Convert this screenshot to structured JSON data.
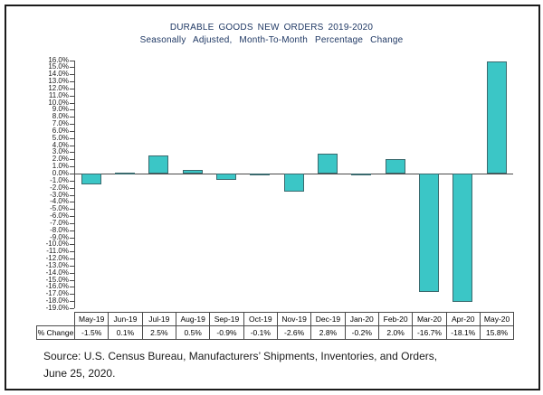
{
  "source": {
    "line1": "Source: U.S. Census Bureau, Manufacturers’ Shipments, Inventories, and Orders,",
    "line2": "June 25, 2020."
  },
  "table": {
    "row_label": "% Change"
  },
  "colors": {
    "bar_fill": "#3BC6C6",
    "bar_border": "#3A6A6E",
    "axis_line": "#4a4a4a",
    "title_text": "#1F3864",
    "frame_border": "#1b1b1b"
  },
  "chart_data": {
    "type": "bar",
    "title": "DURABLE GOODS NEW ORDERS 2019-2020",
    "subtitle": "Seasonally Adjusted, Month-To-Month Percentage Change",
    "categories": [
      "May-19",
      "Jun-19",
      "Jul-19",
      "Aug-19",
      "Sep-19",
      "Oct-19",
      "Nov-19",
      "Dec-19",
      "Jan-20",
      "Feb-20",
      "Mar-20",
      "Apr-20",
      "May-20"
    ],
    "values": [
      -1.5,
      0.1,
      2.5,
      0.5,
      -0.9,
      -0.1,
      -2.6,
      2.8,
      -0.2,
      2.0,
      -16.7,
      -18.1,
      15.8
    ],
    "value_labels": [
      "-1.5%",
      "0.1%",
      "2.5%",
      "0.5%",
      "-0.9%",
      "-0.1%",
      "-2.6%",
      "2.8%",
      "-0.2%",
      "2.0%",
      "-16.7%",
      "-18.1%",
      "15.8%"
    ],
    "ylim": [
      -19,
      16
    ],
    "ytick_step": 1,
    "ytick_labels": [
      "16.0%",
      "15.0%",
      "14.0%",
      "13.0%",
      "12.0%",
      "11.0%",
      "10.0%",
      "9.0%",
      "8.0%",
      "7.0%",
      "6.0%",
      "5.0%",
      "4.0%",
      "3.0%",
      "2.0%",
      "1.0%",
      "0.0%",
      "-1.0%",
      "-2.0%",
      "-3.0%",
      "-4.0%",
      "-5.0%",
      "-6.0%",
      "-7.0%",
      "-8.0%",
      "-9.0%",
      "-10.0%",
      "-11.0%",
      "-12.0%",
      "-13.0%",
      "-14.0%",
      "-15.0%",
      "-16.0%",
      "-17.0%",
      "-18.0%",
      "-19.0%"
    ],
    "grid": false,
    "legend": "none"
  }
}
